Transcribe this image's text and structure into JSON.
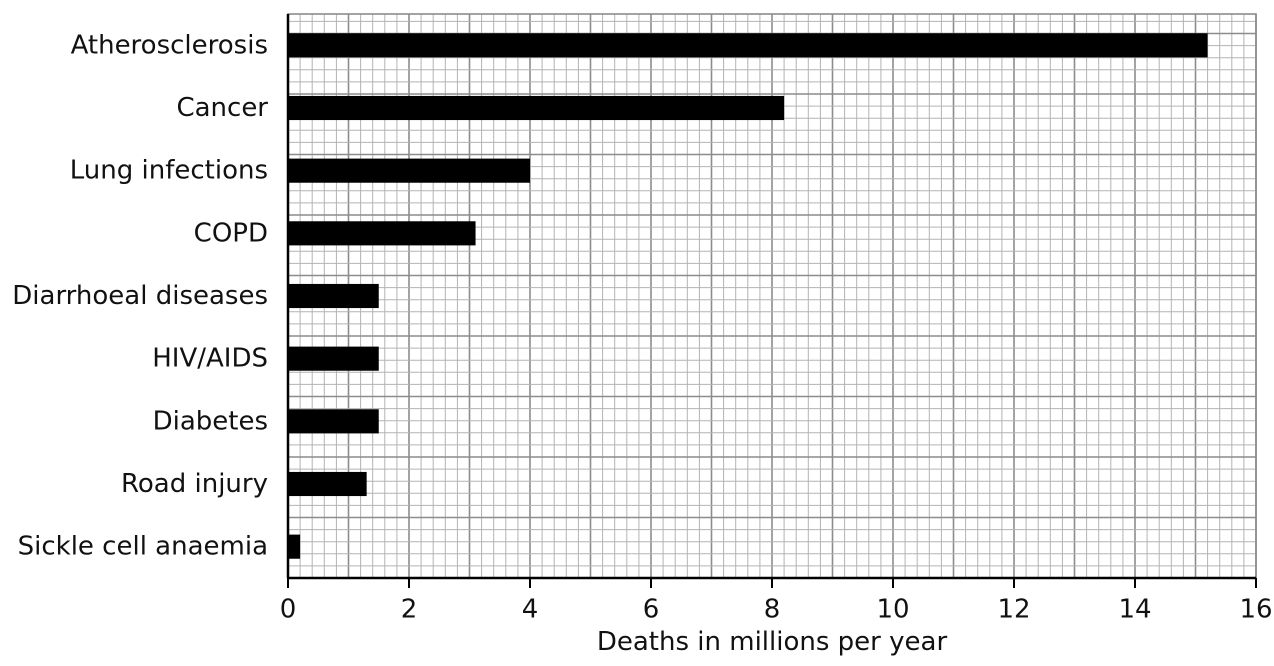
{
  "chart_data": {
    "type": "bar",
    "orientation": "horizontal",
    "categories": [
      "Atherosclerosis",
      "Cancer",
      "Lung infections",
      "COPD",
      "Diarrhoeal diseases",
      "HIV/AIDS",
      "Diabetes",
      "Road injury",
      "Sickle cell anaemia"
    ],
    "values": [
      15.2,
      8.2,
      4.0,
      3.1,
      1.5,
      1.5,
      1.5,
      1.3,
      0.2
    ],
    "xlabel": "Deaths in millions per year",
    "xlim": [
      0,
      16
    ],
    "xticks": [
      "0",
      "2",
      "4",
      "6",
      "8",
      "10",
      "12",
      "14",
      "16"
    ],
    "grid": true,
    "colors": {
      "bar": "#000000",
      "grid_minor": "#b3b3b3",
      "grid_major": "#8c8c8c",
      "axis": "#000000"
    }
  }
}
